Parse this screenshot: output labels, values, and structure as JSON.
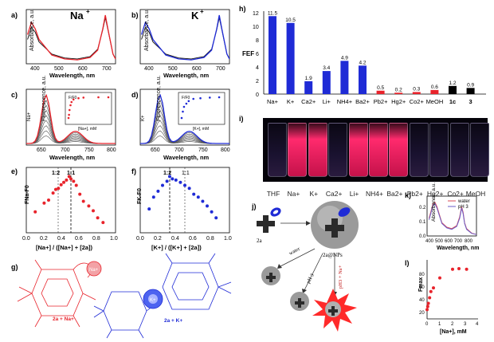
{
  "panels": {
    "a": {
      "letter": "a)",
      "ion": "Na",
      "ion_sup": "+",
      "ylabel": "Absorbance, a.u.",
      "xlabel": "Wavelength, nm",
      "xticks": [
        "400",
        "500",
        "600",
        "700"
      ]
    },
    "b": {
      "letter": "b)",
      "ion": "K",
      "ion_sup": "+",
      "ylabel": "Absorbance, a.u.",
      "xlabel": "Wavelength, nm",
      "xticks": [
        "400",
        "500",
        "600",
        "700"
      ]
    },
    "c": {
      "letter": "c)",
      "ylabel": "Fluorescence, a.u.",
      "xlabel": "Wavelength, nm",
      "xticks": [
        "650",
        "700",
        "750",
        "800"
      ],
      "arrow_label": "Na+",
      "inset_ylabel": "F/F0",
      "inset_xlabel": "[Na+], mM",
      "inset_xticks": [
        "0",
        "10",
        "20",
        "30",
        "40"
      ],
      "inset_yticks": [
        "0",
        "2",
        "4",
        "6",
        "8"
      ]
    },
    "d": {
      "letter": "d)",
      "ylabel": "Fluorescence, a.u.",
      "xlabel": "Wavelength, nm",
      "xticks": [
        "650",
        "700",
        "750",
        "800"
      ],
      "arrow_label": "K+",
      "inset_ylabel": "F/F0",
      "inset_xlabel": "[K+], mM",
      "inset_xticks": [
        "0",
        "5",
        "10",
        "15"
      ],
      "inset_yticks": [
        "0",
        "2",
        "4",
        "6",
        "8"
      ]
    },
    "e": {
      "letter": "e)",
      "ylabel": "FNa-F0",
      "xlabel": "[Na+] / ([Na+] + [2a])",
      "xticks": [
        "0.0",
        "0.2",
        "0.4",
        "0.6",
        "0.8",
        "1.0"
      ],
      "guide1": "1:2",
      "guide2": "1:1"
    },
    "f": {
      "letter": "f)",
      "ylabel": "FK-F0",
      "xlabel": "[K+] / ([K+] + [2a])",
      "xticks": [
        "0.0",
        "0.2",
        "0.4",
        "0.6",
        "0.8",
        "1.0"
      ],
      "guide1": "1:2",
      "guide2": "1:1"
    },
    "g": {
      "letter": "g)",
      "label_na": "2a + Na+",
      "label_k": "2a + K+",
      "bubble_na": "Na+",
      "bubble_k": "K+"
    },
    "h": {
      "letter": "h)",
      "ylabel": "FEF",
      "yticks": [
        "0",
        "2",
        "4",
        "6",
        "8",
        "10",
        "12"
      ]
    },
    "i": {
      "letter": "i)"
    },
    "j": {
      "letter": "j)",
      "left_label": "2a",
      "np_label": "2a@NPs",
      "arrow_water": "water",
      "arrow_ph": "pH 3",
      "arrow_ph_na": "pH3 + Na+"
    },
    "k": {
      "letter": "k)",
      "ylabel": "Absorbance, a.u.",
      "xlabel": "Wavelength, nm",
      "xticks": [
        "400",
        "500",
        "600",
        "700",
        "800"
      ],
      "yticks": [
        "0.0",
        "0.1",
        "0.2"
      ],
      "legend": [
        "water",
        "pH 3"
      ]
    },
    "l": {
      "letter": "l)",
      "ylabel": "Fmax",
      "xlabel": "[Na+], mM",
      "xticks": [
        "0",
        "1",
        "2",
        "3",
        "4"
      ],
      "yticks": [
        "20",
        "40",
        "60",
        "80"
      ]
    }
  },
  "vial_labels": [
    "THF",
    "Na+",
    "K+",
    "Ca2+",
    "Li+",
    "NH4+",
    "Ba2+",
    "Pb2+",
    "Hg2+",
    "Co2+",
    "MeOH"
  ],
  "colors": {
    "na": "#e8232b",
    "k": "#1f2bd6",
    "water": "#d94a55",
    "ph3": "#6a5ec9",
    "vial_glow": "#ff2a6d"
  },
  "chart_data": [
    {
      "panel": "h",
      "type": "bar",
      "title": "",
      "ylabel": "FEF",
      "ylim": [
        0,
        12
      ],
      "categories": [
        "Na+",
        "K+",
        "Ca2+",
        "Li+",
        "NH4+",
        "Ba2+",
        "Pb2+",
        "Hg2+",
        "Co2+",
        "MeOH",
        "1c",
        "3"
      ],
      "values": [
        11.5,
        10.5,
        1.9,
        3.4,
        4.9,
        4.2,
        0.5,
        0.2,
        0.3,
        0.6,
        1.2,
        0.9
      ],
      "value_labels": [
        "11.5",
        "10.5",
        "1.9",
        "3.4",
        "4.9",
        "4.2",
        "0.5",
        "0.2",
        "0.3",
        "0.6",
        "1.2",
        "0.9"
      ],
      "bar_colors": [
        "blue",
        "blue",
        "blue",
        "blue",
        "blue",
        "blue",
        "red",
        "red",
        "red",
        "red",
        "black",
        "black"
      ]
    },
    {
      "panel": "e",
      "type": "scatter",
      "xlim": [
        0,
        1
      ],
      "xlabel": "[Na+] / ([Na+] + [2a])",
      "ylabel": "FNa-F0",
      "x": [
        0.1,
        0.2,
        0.25,
        0.3,
        0.33,
        0.36,
        0.39,
        0.42,
        0.45,
        0.48,
        0.5,
        0.53,
        0.56,
        0.6,
        0.64,
        0.7,
        0.75,
        0.8,
        0.86
      ],
      "y": [
        0.3,
        0.45,
        0.5,
        0.62,
        0.68,
        0.7,
        0.76,
        0.8,
        0.84,
        0.9,
        0.86,
        0.82,
        0.75,
        0.6,
        0.48,
        0.4,
        0.32,
        0.2,
        0.12
      ]
    },
    {
      "panel": "f",
      "type": "scatter",
      "xlim": [
        0,
        1
      ],
      "xlabel": "[K+] / ([K+] + [2a])",
      "ylabel": "FK-F0",
      "x": [
        0.1,
        0.15,
        0.2,
        0.25,
        0.3,
        0.33,
        0.36,
        0.4,
        0.45,
        0.5,
        0.55,
        0.6,
        0.65,
        0.7,
        0.75,
        0.8,
        0.85
      ],
      "y": [
        0.35,
        0.55,
        0.65,
        0.75,
        0.82,
        0.9,
        0.86,
        0.84,
        0.8,
        0.75,
        0.7,
        0.6,
        0.55,
        0.48,
        0.4,
        0.3,
        0.2
      ]
    },
    {
      "panel": "l",
      "type": "scatter",
      "xlim": [
        0,
        4
      ],
      "ylim": [
        0,
        90
      ],
      "xlabel": "[Na+], mM",
      "ylabel": "Fmax",
      "x": [
        0.0,
        0.05,
        0.1,
        0.2,
        0.3,
        0.5,
        1.0,
        2.0,
        2.5,
        3.1
      ],
      "y": [
        15,
        20,
        25,
        34,
        44,
        50,
        66,
        80,
        81,
        80
      ]
    },
    {
      "panel": "k",
      "type": "line",
      "xlim": [
        300,
        800
      ],
      "ylim": [
        0,
        0.25
      ],
      "xlabel": "Wavelength, nm",
      "ylabel": "Absorbance, a.u.",
      "series": [
        {
          "name": "water",
          "x": [
            320,
            340,
            360,
            380,
            400,
            450,
            500,
            550,
            600,
            630,
            650,
            665,
            680,
            700,
            750,
            800
          ],
          "y": [
            0.12,
            0.17,
            0.22,
            0.23,
            0.2,
            0.09,
            0.06,
            0.05,
            0.07,
            0.13,
            0.2,
            0.16,
            0.09,
            0.05,
            0.02,
            0.01
          ]
        },
        {
          "name": "pH 3",
          "x": [
            320,
            340,
            360,
            380,
            400,
            450,
            500,
            550,
            600,
            630,
            650,
            665,
            680,
            700,
            750,
            800
          ],
          "y": [
            0.11,
            0.16,
            0.21,
            0.22,
            0.19,
            0.085,
            0.055,
            0.045,
            0.065,
            0.12,
            0.19,
            0.15,
            0.085,
            0.045,
            0.018,
            0.01
          ]
        }
      ]
    },
    {
      "panel": "a",
      "type": "line",
      "xlim": [
        350,
        700
      ],
      "xlabel": "Wavelength, nm",
      "ylabel": "Absorbance, a.u.",
      "series": [
        {
          "name": "start",
          "x": [
            355,
            370,
            385,
            400,
            450,
            500,
            550,
            600,
            630,
            650,
            660,
            670,
            690,
            700
          ],
          "y": [
            0.5,
            0.75,
            0.65,
            0.45,
            0.2,
            0.12,
            0.1,
            0.15,
            0.3,
            0.7,
            0.95,
            0.7,
            0.2,
            0.1
          ]
        },
        {
          "name": "end",
          "x": [
            355,
            370,
            385,
            400,
            450,
            500,
            550,
            600,
            630,
            650,
            660,
            670,
            690,
            700
          ],
          "y": [
            0.6,
            0.85,
            0.72,
            0.5,
            0.18,
            0.1,
            0.08,
            0.13,
            0.28,
            0.72,
            1.0,
            0.72,
            0.2,
            0.1
          ]
        }
      ]
    },
    {
      "panel": "b",
      "type": "line",
      "xlim": [
        350,
        700
      ],
      "xlabel": "Wavelength, nm",
      "ylabel": "Absorbance, a.u.",
      "series": [
        {
          "name": "start",
          "x": [
            355,
            370,
            385,
            400,
            450,
            500,
            550,
            600,
            630,
            650,
            660,
            670,
            690,
            700
          ],
          "y": [
            0.5,
            0.75,
            0.65,
            0.45,
            0.2,
            0.12,
            0.1,
            0.15,
            0.3,
            0.7,
            0.95,
            0.7,
            0.2,
            0.1
          ]
        },
        {
          "name": "end",
          "x": [
            355,
            370,
            385,
            400,
            450,
            500,
            550,
            600,
            630,
            650,
            660,
            670,
            690,
            700
          ],
          "y": [
            0.6,
            0.85,
            0.72,
            0.5,
            0.18,
            0.1,
            0.08,
            0.13,
            0.28,
            0.72,
            1.0,
            0.72,
            0.2,
            0.1
          ]
        }
      ]
    },
    {
      "panel": "c-inset",
      "type": "scatter",
      "xlim": [
        0,
        40
      ],
      "ylim": [
        0,
        8
      ],
      "xlabel": "[Na+], mM",
      "ylabel": "F/F0",
      "x": [
        0,
        0.5,
        1,
        2,
        3,
        5,
        10,
        15,
        30,
        40
      ],
      "y": [
        1,
        2,
        3.5,
        5,
        6,
        6.8,
        7.2,
        7.4,
        7.5,
        7.5
      ]
    },
    {
      "panel": "d-inset",
      "type": "scatter",
      "xlim": [
        0,
        17
      ],
      "ylim": [
        0,
        8
      ],
      "xlabel": "[K+], mM",
      "ylabel": "F/F0",
      "x": [
        0,
        0.5,
        1,
        2,
        3,
        5,
        8,
        12,
        16
      ],
      "y": [
        1,
        3,
        4.5,
        5.5,
        6.3,
        7,
        7.2,
        7.4,
        7.5
      ]
    }
  ]
}
